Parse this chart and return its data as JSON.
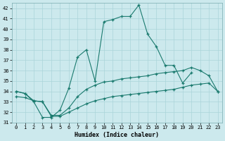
{
  "xlabel": "Humidex (Indice chaleur)",
  "bg_color": "#cce9ed",
  "grid_color": "#aad4d9",
  "line_color": "#1a7a6e",
  "curve1_x": [
    0,
    1,
    2,
    3,
    4,
    5,
    6,
    7,
    8,
    9,
    10,
    11,
    12,
    13,
    14,
    15,
    16,
    17,
    18,
    19,
    20,
    21,
    22
  ],
  "curve1_y": [
    34.0,
    33.8,
    33.0,
    31.5,
    31.5,
    32.2,
    34.3,
    37.3,
    38.0,
    35.0,
    40.7,
    40.9,
    41.2,
    41.2,
    42.3,
    39.5,
    38.3,
    36.5,
    36.5,
    34.8,
    35.8,
    null,
    null
  ],
  "curve2_x": [
    0,
    1,
    2,
    3,
    4,
    5,
    6,
    7,
    8,
    9,
    10,
    11,
    12,
    13,
    14,
    15,
    16,
    17,
    18,
    19,
    20,
    21,
    22,
    23
  ],
  "curve2_y": [
    34.0,
    33.8,
    33.1,
    33.0,
    31.7,
    31.7,
    32.4,
    33.5,
    34.2,
    34.6,
    34.9,
    35.0,
    35.2,
    35.3,
    35.4,
    35.5,
    35.7,
    35.8,
    35.9,
    36.0,
    36.3,
    36.0,
    35.5,
    34.0
  ],
  "curve3_x": [
    0,
    1,
    2,
    3,
    4,
    5,
    6,
    7,
    8,
    9,
    10,
    11,
    12,
    13,
    14,
    15,
    16,
    17,
    18,
    19,
    20,
    21,
    22,
    23
  ],
  "curve3_y": [
    33.5,
    33.4,
    33.1,
    33.0,
    31.6,
    31.6,
    32.0,
    32.4,
    32.8,
    33.1,
    33.3,
    33.5,
    33.6,
    33.7,
    33.8,
    33.9,
    34.0,
    34.1,
    34.2,
    34.4,
    34.6,
    34.7,
    34.8,
    34.0
  ],
  "ylim": [
    31,
    42.5
  ],
  "xlim": [
    -0.5,
    23.5
  ],
  "yticks": [
    31,
    32,
    33,
    34,
    35,
    36,
    37,
    38,
    39,
    40,
    41,
    42
  ],
  "xticks": [
    0,
    1,
    2,
    3,
    4,
    5,
    6,
    7,
    8,
    9,
    10,
    11,
    12,
    13,
    14,
    15,
    16,
    17,
    18,
    19,
    20,
    21,
    22,
    23
  ]
}
